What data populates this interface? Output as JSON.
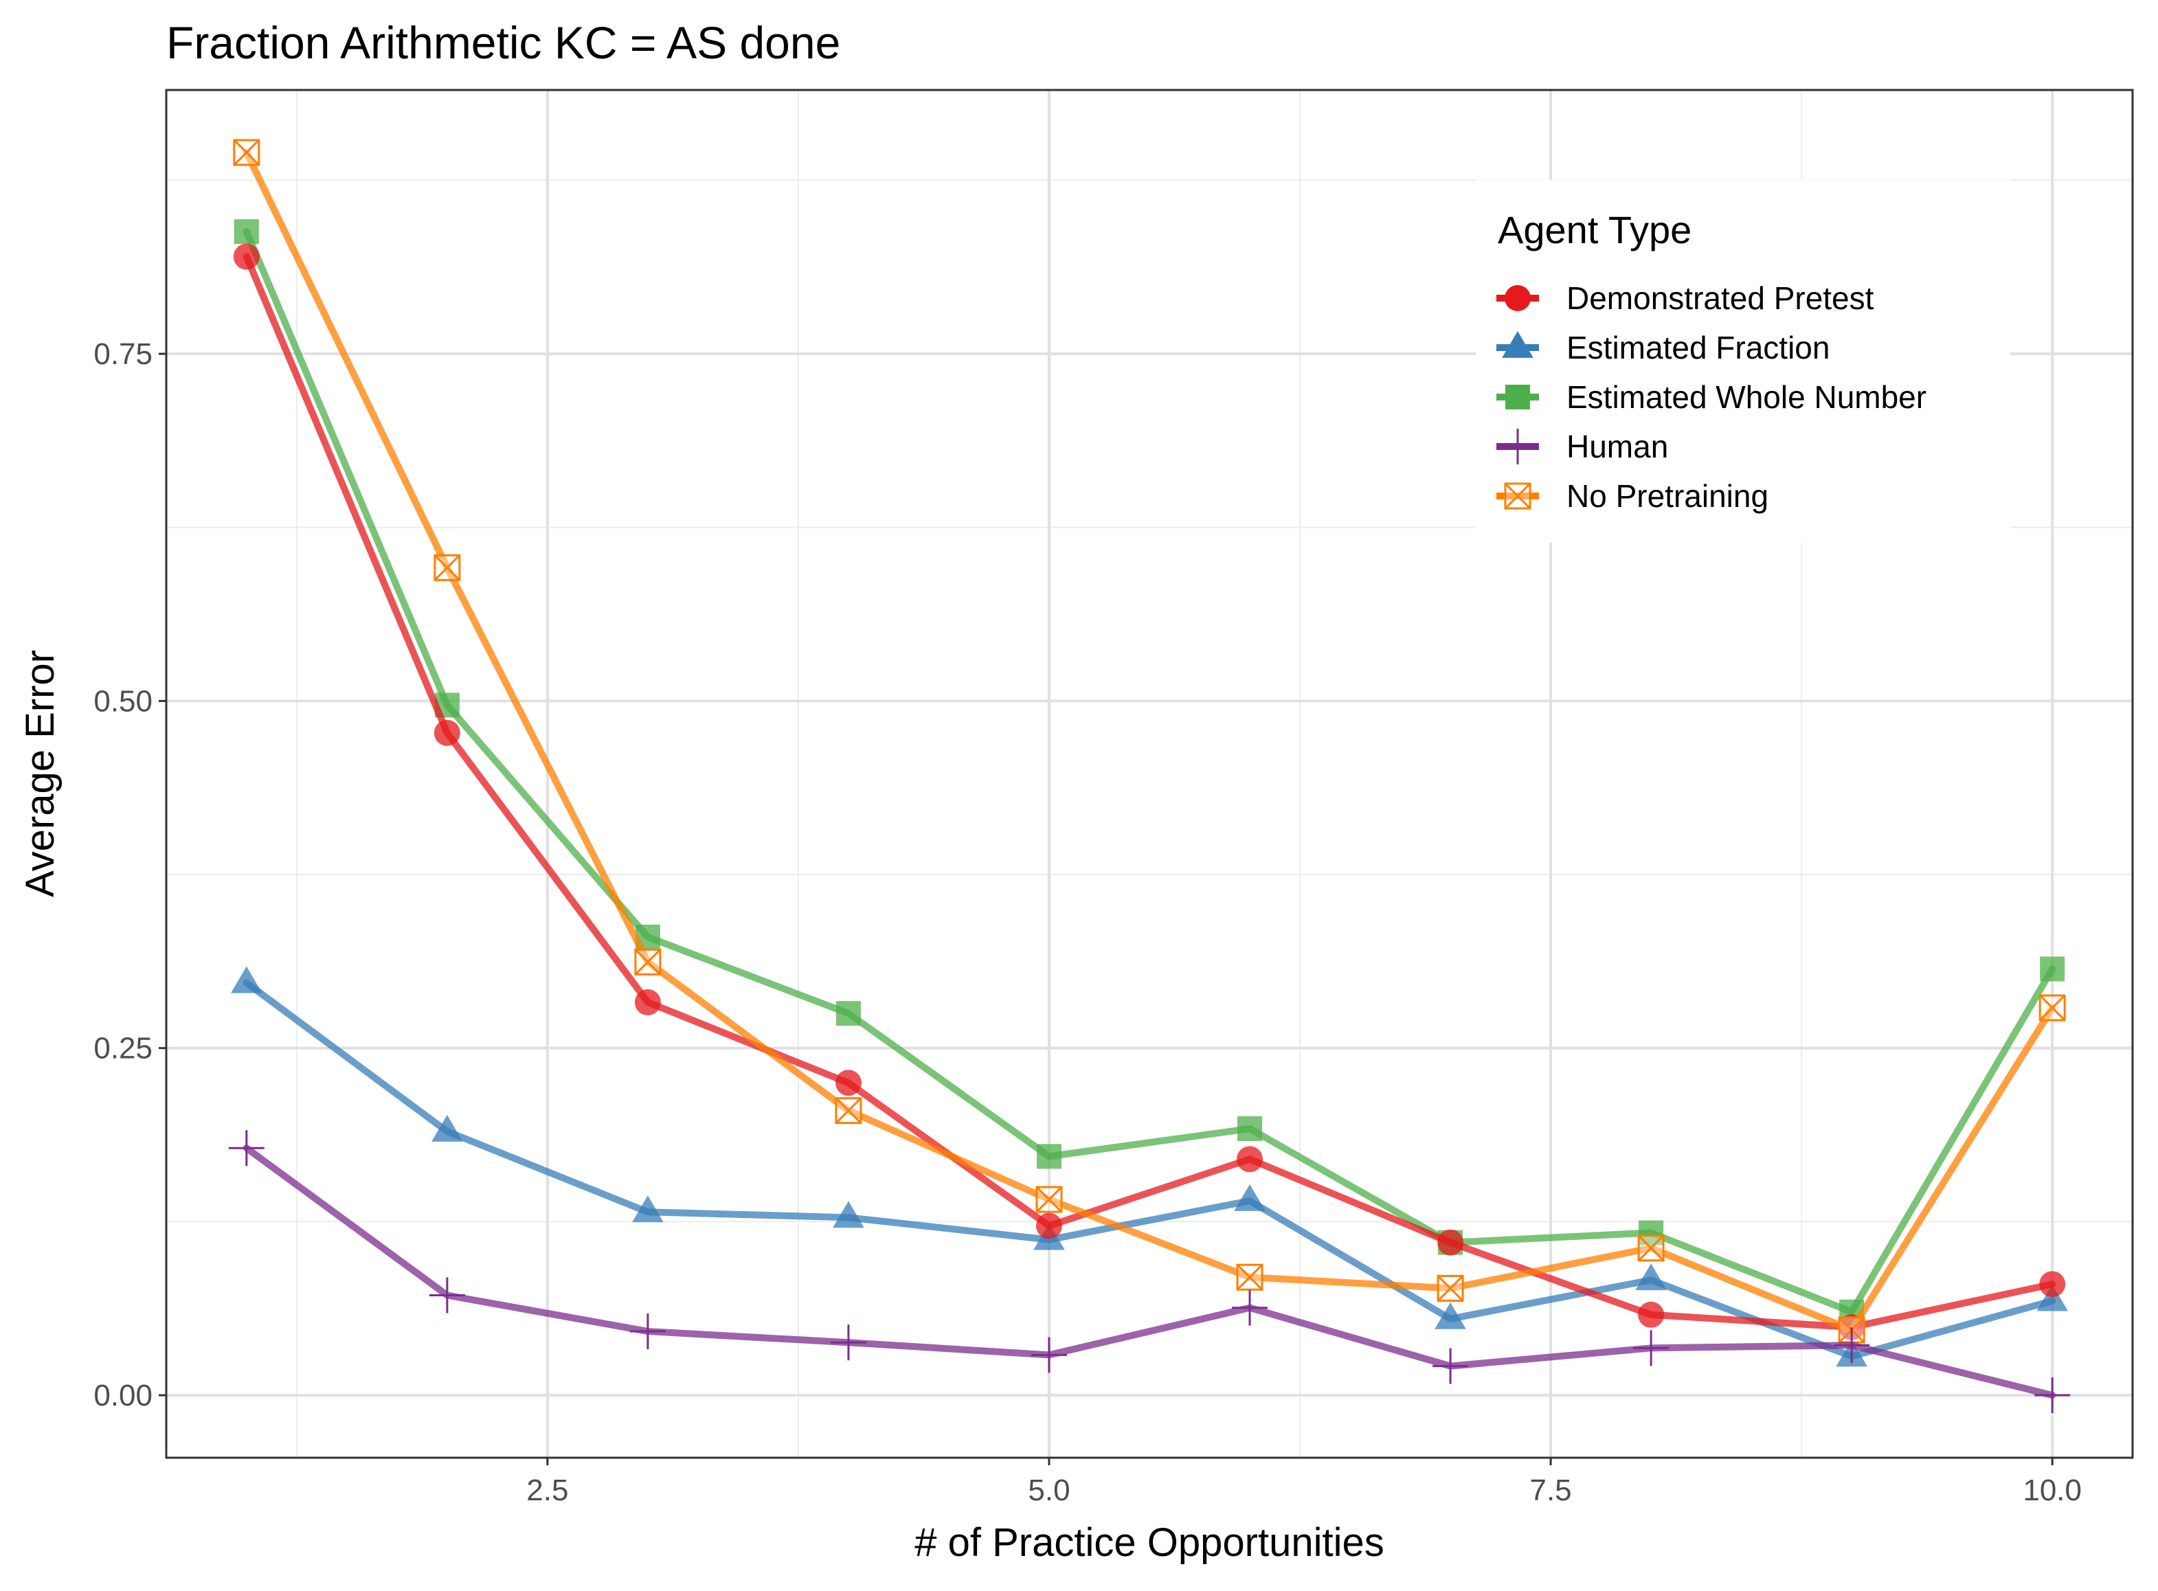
{
  "chart_data": {
    "type": "line",
    "title": "Fraction Arithmetic KC =  AS done",
    "xlabel": "# of Practice Opportunities",
    "ylabel": "Average Error",
    "xlim": [
      0.6,
      10.4
    ],
    "ylim": [
      -0.045,
      0.94
    ],
    "x_ticks": [
      2.5,
      5.0,
      7.5,
      10.0
    ],
    "x_tick_labels": [
      "2.5",
      "5.0",
      "7.5",
      "10.0"
    ],
    "y_ticks": [
      0.0,
      0.25,
      0.5,
      0.75
    ],
    "y_tick_labels": [
      "0.00",
      "0.25",
      "0.50",
      "0.75"
    ],
    "grid": true,
    "legend_title": "Agent Type",
    "legend_position": "top-right",
    "x": [
      1,
      2,
      3,
      4,
      5,
      6,
      7,
      8,
      9,
      10
    ],
    "series": [
      {
        "name": "Demonstrated Pretest",
        "marker": "circle",
        "color": "#E41A1C",
        "values": [
          0.82,
          0.477,
          0.283,
          0.225,
          0.122,
          0.17,
          0.11,
          0.058,
          0.049,
          0.08
        ]
      },
      {
        "name": "Estimated Fraction",
        "marker": "triangle",
        "color": "#377EB8",
        "values": [
          0.297,
          0.19,
          0.132,
          0.128,
          0.112,
          0.14,
          0.055,
          0.083,
          0.028,
          0.068
        ]
      },
      {
        "name": "Estimated Whole Number",
        "marker": "square",
        "color": "#4DAF4A",
        "values": [
          0.838,
          0.497,
          0.33,
          0.275,
          0.172,
          0.192,
          0.11,
          0.117,
          0.06,
          0.307
        ]
      },
      {
        "name": "Human",
        "marker": "plus",
        "color": "#7B2D8E",
        "values": [
          0.178,
          0.072,
          0.046,
          0.038,
          0.029,
          0.063,
          0.021,
          0.034,
          0.036,
          0.0
        ]
      },
      {
        "name": "No Pretraining",
        "marker": "square-cross",
        "color": "#FF7F00",
        "values": [
          0.895,
          0.596,
          0.312,
          0.205,
          0.141,
          0.085,
          0.077,
          0.106,
          0.047,
          0.279
        ]
      }
    ]
  }
}
